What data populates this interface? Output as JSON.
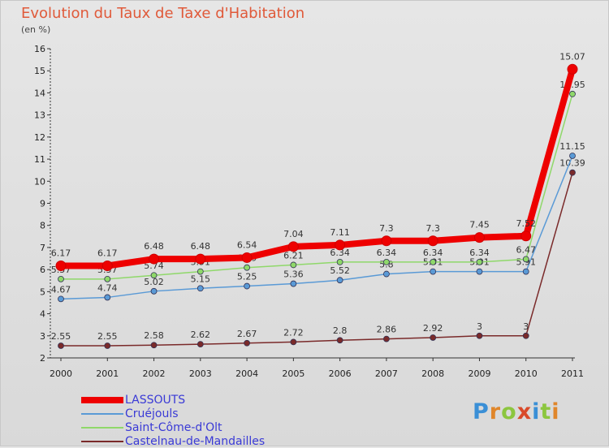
{
  "header": {
    "title": "Evolution du Taux de Taxe d'Habitation",
    "subtitle": "(en %)"
  },
  "logo": {
    "text": "Proxiti",
    "letters": [
      "P",
      "r",
      "o",
      "x",
      "i",
      "t",
      "i"
    ],
    "colors": [
      "#3a8fd6",
      "#e0862a",
      "#8cc63f",
      "#d94a2a",
      "#3a8fd6",
      "#8cc63f",
      "#e0862a"
    ]
  },
  "chart_data": {
    "type": "line",
    "title": "Evolution du Taux de Taxe d'Habitation",
    "subtitle": "(en %)",
    "categories": [
      "2000",
      "2001",
      "2002",
      "2003",
      "2004",
      "2005",
      "2006",
      "2007",
      "2008",
      "2009",
      "2010",
      "2011"
    ],
    "ylim": [
      2,
      16
    ],
    "yticks": [
      "2",
      "3",
      "4",
      "5",
      "6",
      "7",
      "8",
      "9",
      "10",
      "11",
      "12",
      "13",
      "14",
      "15",
      "16"
    ],
    "grid": false,
    "legend_placement": "bottom-left",
    "series": [
      {
        "name": "Castelnau-de-Mandailles",
        "color": "#7a2a2a",
        "values": [
          2.55,
          2.55,
          2.58,
          2.62,
          2.67,
          2.72,
          2.8,
          2.86,
          2.92,
          3,
          3,
          10.39
        ],
        "labels": [
          "2.55",
          "2.55",
          "2.58",
          "2.62",
          "2.67",
          "2.72",
          "2.8",
          "2.86",
          "2.92",
          "3",
          "3",
          "10.39"
        ]
      },
      {
        "name": "Cruéjouls",
        "color": "#5a9ad6",
        "values": [
          4.67,
          4.74,
          5.02,
          5.15,
          5.25,
          5.36,
          5.52,
          5.8,
          5.91,
          5.91,
          5.91,
          11.15
        ],
        "labels": [
          "4.67",
          "4.74",
          "5.02",
          "5.15",
          "5.25",
          "5.36",
          "5.52",
          "5.8",
          "5.91",
          "5.91",
          "5.91",
          "11.15"
        ]
      },
      {
        "name": "Saint-Côme-d'Olt",
        "color": "#8fd86a",
        "values": [
          5.57,
          5.57,
          5.74,
          5.91,
          6.09,
          6.21,
          6.34,
          6.34,
          6.34,
          6.34,
          6.47,
          13.95
        ],
        "labels": [
          "5.57",
          "5.57",
          "5.74",
          "5.91",
          "6.09",
          "6.21",
          "6.34",
          "6.34",
          "6.34",
          "6.34",
          "6.47",
          "13.95"
        ]
      },
      {
        "name": "LASSOUTS",
        "color": "#ee0000",
        "values": [
          6.17,
          6.17,
          6.48,
          6.48,
          6.54,
          7.04,
          7.11,
          7.3,
          7.3,
          7.45,
          7.52,
          15.07
        ],
        "labels": [
          "6.17",
          "6.17",
          "6.48",
          "6.48",
          "6.54",
          "7.04",
          "7.11",
          "7.3",
          "7.3",
          "7.45",
          "7.52",
          "15.07"
        ]
      }
    ],
    "legend": [
      "LASSOUTS",
      "Cruéjouls",
      "Saint-Côme-d'Olt",
      "Castelnau-de-Mandailles"
    ]
  }
}
